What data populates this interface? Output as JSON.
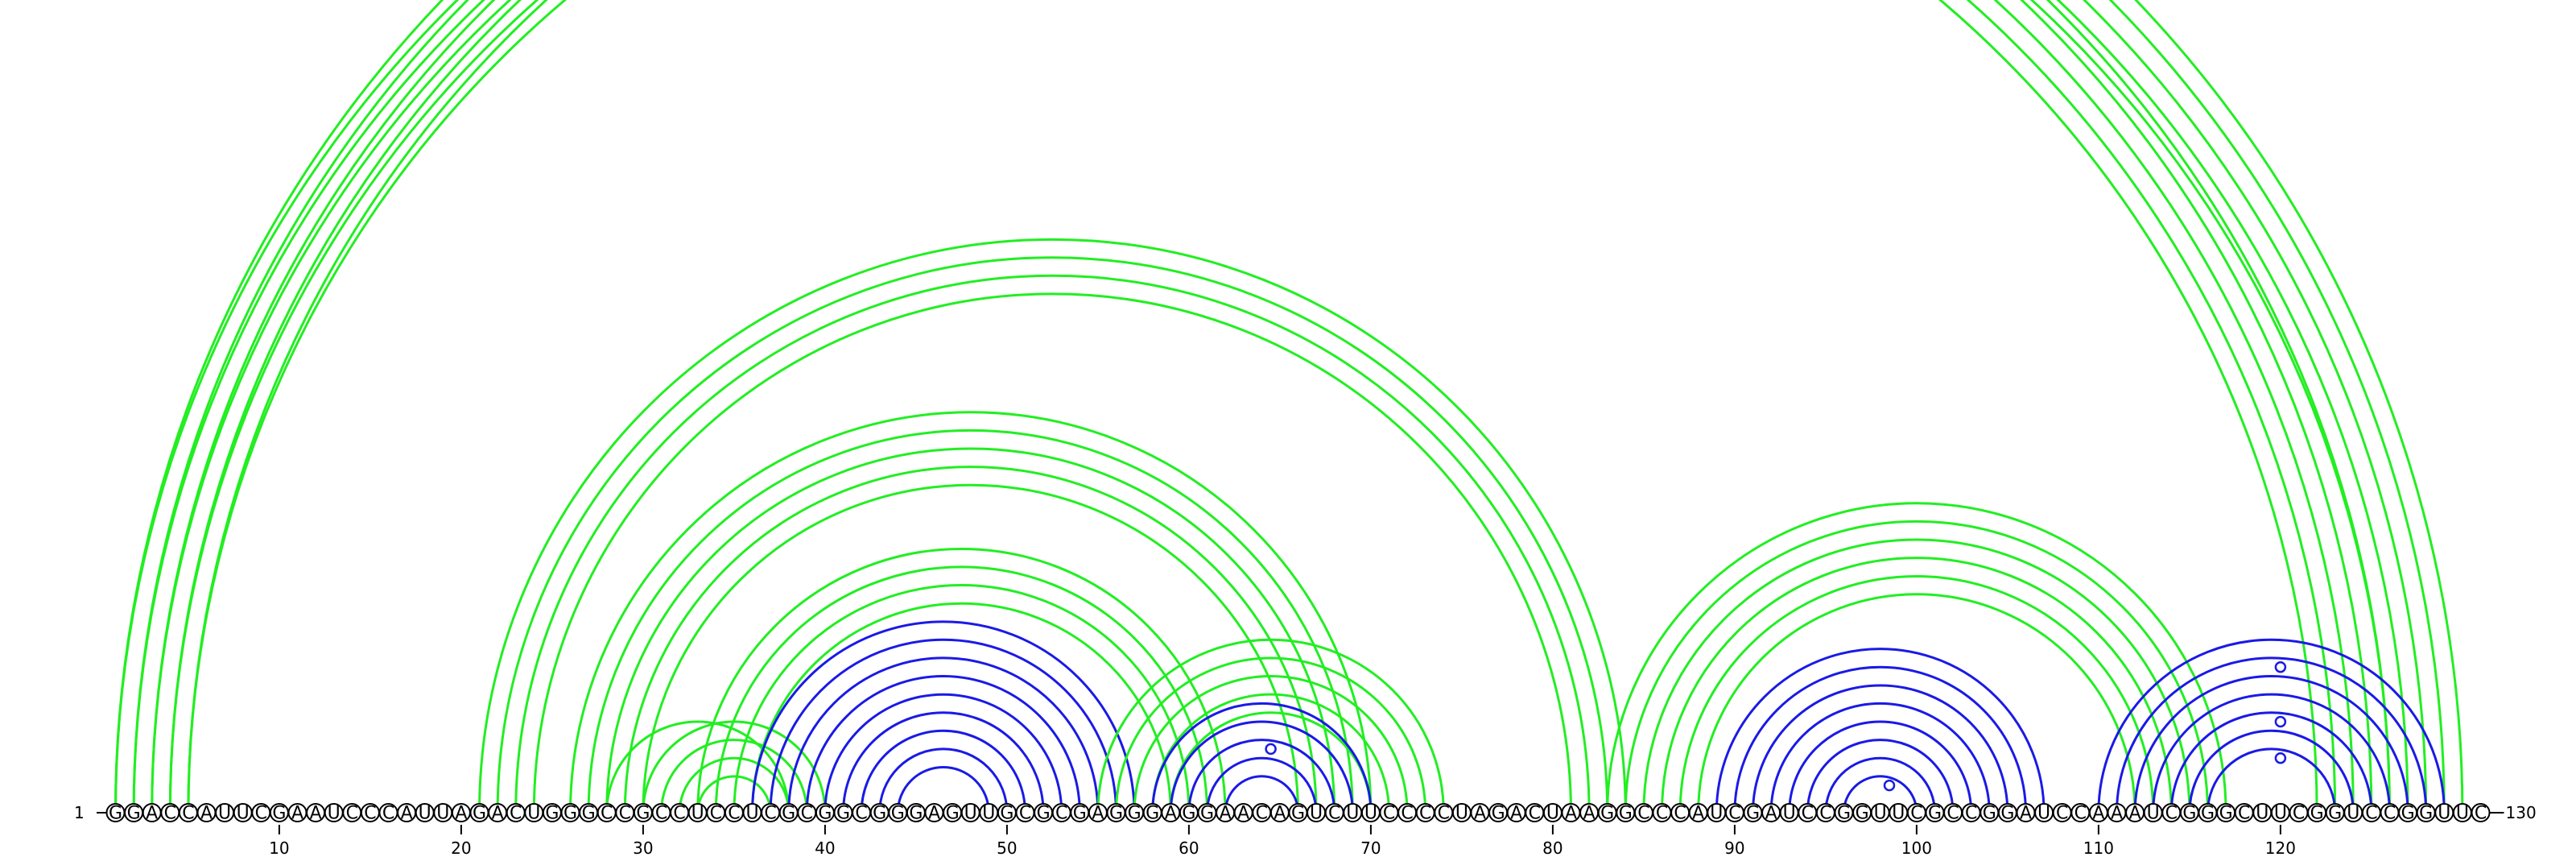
{
  "colors": {
    "arc_green": "#22ee22",
    "arc_blue": "#1a1ae6",
    "base_stroke": "#000000",
    "background": "#ffffff"
  },
  "sequence": "GGACCAUUCGAAUCCCAUUAGACUGGGCCGCCUCCUCGCGGCGGGAGUUGCGCGAGGGAGGAACAGUCUUCCCCUAGACUAAGGCCCAUCGAUCCGGUUCGCCGGAUCCAAAUCGGGCUUCGGUCCGGUUC",
  "start_label": "1",
  "end_label": "130",
  "ticks": [
    "10",
    "20",
    "30",
    "40",
    "50",
    "60",
    "70",
    "80",
    "90",
    "100",
    "110",
    "120"
  ],
  "tick_positions": [
    10,
    20,
    30,
    40,
    50,
    60,
    70,
    80,
    90,
    100,
    110,
    120
  ],
  "markers": [
    {
      "i": 1,
      "j": 130,
      "color": "green"
    },
    {
      "i": 61,
      "j": 68,
      "color": "blue"
    },
    {
      "i": 97,
      "j": 100,
      "color": "blue"
    },
    {
      "i": 112,
      "j": 128,
      "color": "blue"
    },
    {
      "i": 115,
      "j": 125,
      "color": "blue"
    },
    {
      "i": 117,
      "j": 123,
      "color": "blue"
    }
  ],
  "arcs": [
    {
      "color": "green",
      "pairs": [
        [
          1,
          130
        ],
        [
          2,
          129
        ],
        [
          3,
          128
        ],
        [
          4,
          127
        ],
        [
          5,
          126
        ]
      ]
    },
    {
      "color": "green",
      "pairs": [
        [
          1,
          126
        ],
        [
          2,
          125
        ],
        [
          3,
          124
        ],
        [
          4,
          123
        ],
        [
          5,
          122
        ]
      ]
    },
    {
      "color": "green",
      "pairs": [
        [
          21,
          84
        ],
        [
          22,
          83
        ],
        [
          23,
          82
        ],
        [
          24,
          81
        ]
      ]
    },
    {
      "color": "green",
      "pairs": [
        [
          26,
          70
        ],
        [
          27,
          69
        ],
        [
          28,
          68
        ],
        [
          29,
          67
        ],
        [
          30,
          66
        ]
      ]
    },
    {
      "color": "green",
      "pairs": [
        [
          28,
          38
        ],
        [
          30,
          40
        ],
        [
          31,
          39
        ],
        [
          32,
          38
        ],
        [
          33,
          37
        ]
      ]
    },
    {
      "color": "green",
      "pairs": [
        [
          33,
          62
        ],
        [
          34,
          61
        ],
        [
          35,
          60
        ],
        [
          36,
          59
        ]
      ]
    },
    {
      "color": "blue",
      "pairs": [
        [
          36,
          57
        ],
        [
          37,
          56
        ],
        [
          38,
          55
        ],
        [
          39,
          54
        ],
        [
          40,
          53
        ],
        [
          41,
          52
        ],
        [
          42,
          51
        ],
        [
          43,
          50
        ],
        [
          44,
          49
        ]
      ]
    },
    {
      "color": "green",
      "pairs": [
        [
          55,
          74
        ],
        [
          56,
          73
        ],
        [
          57,
          72
        ],
        [
          58,
          71
        ],
        [
          59,
          70
        ]
      ]
    },
    {
      "color": "blue",
      "pairs": [
        [
          58,
          70
        ],
        [
          59,
          69
        ],
        [
          60,
          68
        ],
        [
          61,
          67
        ],
        [
          62,
          66
        ]
      ]
    },
    {
      "color": "green",
      "pairs": [
        [
          83,
          117
        ],
        [
          84,
          116
        ],
        [
          85,
          115
        ],
        [
          86,
          114
        ],
        [
          87,
          113
        ],
        [
          88,
          112
        ]
      ]
    },
    {
      "color": "blue",
      "pairs": [
        [
          89,
          107
        ],
        [
          90,
          106
        ],
        [
          91,
          105
        ],
        [
          92,
          104
        ],
        [
          93,
          103
        ],
        [
          94,
          102
        ],
        [
          95,
          101
        ],
        [
          96,
          100
        ]
      ]
    },
    {
      "color": "blue",
      "pairs": [
        [
          110,
          129
        ],
        [
          111,
          128
        ],
        [
          112,
          127
        ],
        [
          113,
          126
        ],
        [
          114,
          125
        ],
        [
          115,
          124
        ],
        [
          116,
          123
        ]
      ]
    }
  ]
}
